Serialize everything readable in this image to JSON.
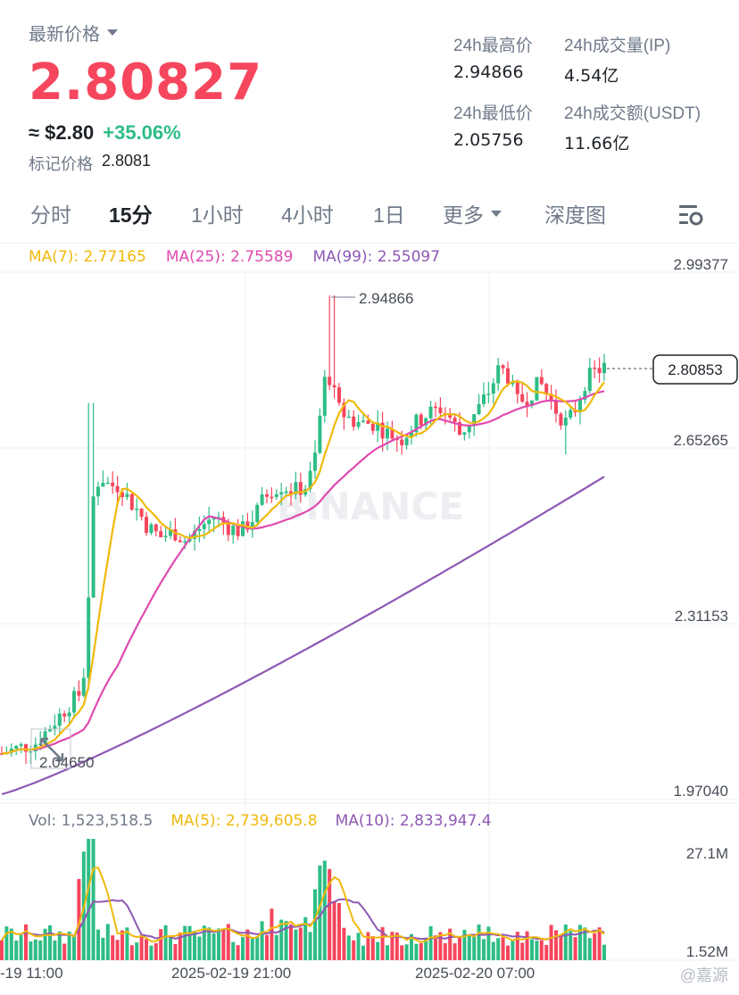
{
  "header": {
    "latest_label": "最新价格",
    "price": "2.80827",
    "usd_approx": "≈ $2.80",
    "change_pct": "+35.06%",
    "mark_label": "标记价格",
    "mark_value": "2.8081",
    "stats": {
      "high_label": "24h最高价",
      "high_value": "2.94866",
      "vol_label": "24h成交量(IP)",
      "vol_value": "4.54亿",
      "low_label": "24h最低价",
      "low_value": "2.05756",
      "turnover_label": "24h成交额(USDT)",
      "turnover_value": "11.66亿"
    }
  },
  "tabs": [
    {
      "label": "分时"
    },
    {
      "label": "15分"
    },
    {
      "label": "1小时"
    },
    {
      "label": "4小时"
    },
    {
      "label": "1日"
    },
    {
      "label": "更多"
    },
    {
      "label": "深度图"
    }
  ],
  "active_tab": "15分",
  "ma_legend": {
    "ma7": "MA(7): 2.77165",
    "ma25": "MA(25): 2.75589",
    "ma99": "MA(99): 2.55097"
  },
  "vol_legend": {
    "vol": "Vol: 1,523,518.5",
    "ma5": "MA(5): 2,739,605.8",
    "ma10": "MA(10): 2,833,947.4"
  },
  "watermark": "BINANCE",
  "corner_watermark": "@嘉源",
  "colors": {
    "up": "#2ebd85",
    "down": "#f6465d",
    "ma7": "#f0b90b",
    "ma25": "#e04ab0",
    "ma99": "#8e58b4"
  },
  "chart_data": {
    "type": "candlestick",
    "price_axis_ticks": [
      "2.99377",
      "2.65265",
      "2.31153",
      "1.97040"
    ],
    "ylim": [
      1.9704,
      2.99377
    ],
    "volume_axis_ticks": [
      "27.1M",
      "1.52M"
    ],
    "time_axis_labels": [
      "-19 11:00",
      "2025-02-19 21:00",
      "2025-02-20 07:00"
    ],
    "annotations": {
      "high_marker": "2.94866",
      "low_marker": "2.04650",
      "current_price_tag": "2.80853"
    }
  }
}
